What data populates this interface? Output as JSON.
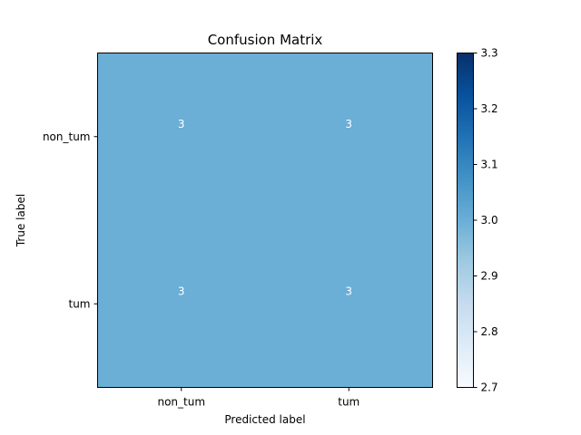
{
  "chart_data": {
    "type": "heatmap",
    "title": "Confusion Matrix",
    "xlabel": "Predicted label",
    "ylabel": "True label",
    "x_categories": [
      "non_tum",
      "tum"
    ],
    "y_categories": [
      "non_tum",
      "tum"
    ],
    "values": [
      [
        3,
        3
      ],
      [
        3,
        3
      ]
    ],
    "colormap": "Blues",
    "cell_color": "#6baed6",
    "cell_text_color": "#ffffff",
    "colorbar": {
      "range": [
        2.7,
        3.3
      ],
      "ticks": [
        "2.7",
        "2.8",
        "2.9",
        "3.0",
        "3.1",
        "3.2",
        "3.3"
      ],
      "colors": [
        "#f7fbff",
        "#deebf7",
        "#c6dbef",
        "#9ecae1",
        "#6baed6",
        "#4292c6",
        "#2171b5",
        "#08519c",
        "#08306b"
      ]
    },
    "grid": false
  }
}
